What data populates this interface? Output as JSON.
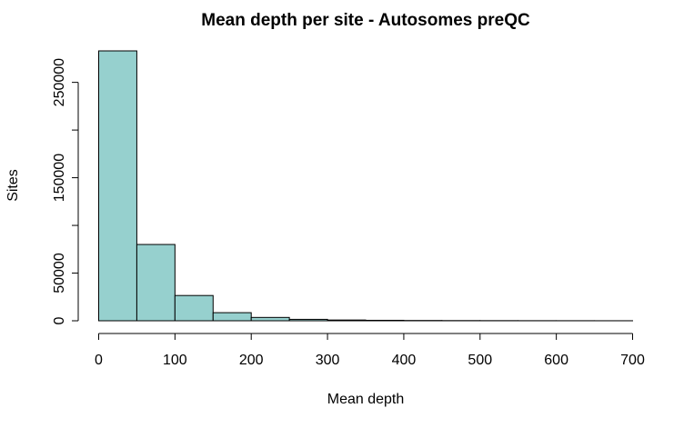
{
  "chart_data": {
    "type": "bar",
    "title": "Mean depth per site - Autosomes preQC",
    "xlabel": "Mean depth",
    "ylabel": "Sites",
    "bin_edges": [
      0,
      50,
      100,
      150,
      200,
      250,
      300,
      350,
      400,
      450,
      500,
      550,
      600,
      650,
      700
    ],
    "values": [
      283000,
      80000,
      26500,
      8500,
      3500,
      1500,
      800,
      500,
      300,
      200,
      150,
      100,
      80,
      50
    ],
    "xlim": [
      0,
      700
    ],
    "ylim": [
      0,
      283000
    ],
    "x_ticks": [
      0,
      100,
      200,
      300,
      400,
      500,
      600,
      700
    ],
    "y_ticks": [
      0,
      50000,
      100000,
      150000,
      200000,
      250000
    ],
    "y_tick_labels": [
      "0",
      "50000",
      "",
      "150000",
      "",
      "250000"
    ],
    "bar_color": "#96d0ce",
    "grid": false,
    "legend": "none"
  }
}
